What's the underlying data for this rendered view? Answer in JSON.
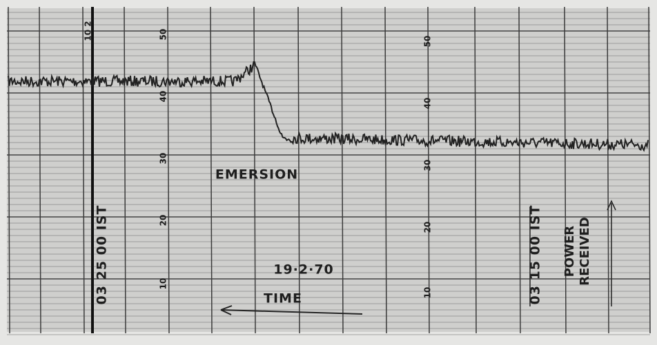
{
  "annotations": {
    "event": "EMERSION",
    "date": "19·2·70",
    "axis": "TIME",
    "start_time": "03 25 00 IST",
    "end_time": "03 15 00 IST",
    "y_axis": "POWER RECEIVED"
  },
  "marker": "10 2",
  "scale_left": [
    "50",
    "40",
    "30",
    "20",
    "10"
  ],
  "scale_right": [
    "50",
    "40",
    "30",
    "20",
    "10"
  ]
}
